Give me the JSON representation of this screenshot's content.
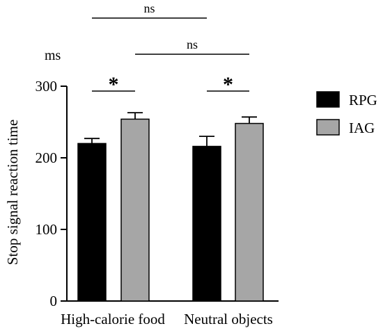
{
  "chart_data": {
    "type": "bar",
    "categories": [
      "High-calorie food",
      "Neutral objects"
    ],
    "series": [
      {
        "name": "RPG",
        "values": [
          220,
          216
        ],
        "errors": [
          7,
          14
        ],
        "color": "#000000"
      },
      {
        "name": "IAG",
        "values": [
          254,
          248
        ],
        "errors": [
          9,
          9
        ],
        "color": "#a6a6a6"
      }
    ],
    "ylabel": "Stop signal reaction time",
    "yunit": "ms",
    "ylim": [
      0,
      300
    ],
    "yticks": [
      0,
      100,
      200,
      300
    ],
    "grid": false,
    "legend_position": "right",
    "significance": [
      {
        "label": "*",
        "between": "RPG vs IAG",
        "category": "High-calorie food"
      },
      {
        "label": "*",
        "between": "RPG vs IAG",
        "category": "Neutral objects"
      },
      {
        "label": "ns",
        "between": "RPG",
        "category": "High-calorie food vs Neutral objects"
      },
      {
        "label": "ns",
        "between": "IAG",
        "category": "High-calorie food vs Neutral objects"
      }
    ]
  }
}
